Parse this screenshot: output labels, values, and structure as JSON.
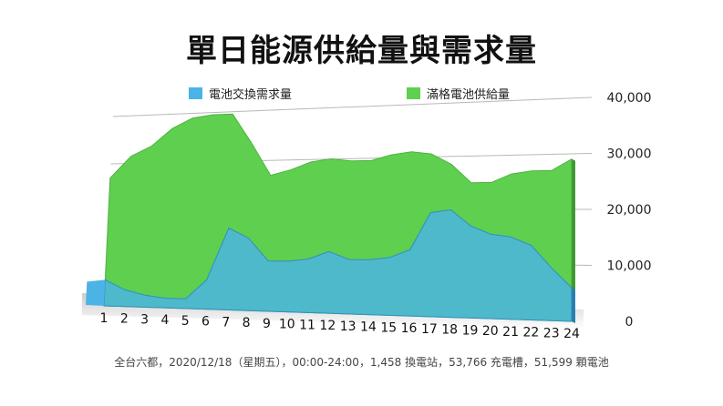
{
  "chart_data": {
    "type": "area",
    "title": "單日能源供給量與需求量",
    "categories": [
      "1",
      "2",
      "3",
      "4",
      "5",
      "6",
      "7",
      "8",
      "9",
      "10",
      "11",
      "12",
      "13",
      "14",
      "15",
      "16",
      "17",
      "18",
      "19",
      "20",
      "21",
      "22",
      "23",
      "24"
    ],
    "series": [
      {
        "name": "電池交換需求量",
        "color": "#4bb3e6",
        "values": [
          5500,
          3500,
          2500,
          2000,
          2000,
          6000,
          16500,
          14500,
          10000,
          10000,
          10500,
          12000,
          10500,
          10500,
          11000,
          12500,
          19500,
          20000,
          17000,
          15500,
          15000,
          13500,
          9500,
          6000
        ]
      },
      {
        "name": "滿格電池供給量",
        "color": "#5fcf4f",
        "values": [
          27000,
          31500,
          33500,
          37000,
          39000,
          39500,
          39500,
          33500,
          27000,
          28000,
          29500,
          30000,
          29500,
          29500,
          30500,
          31000,
          30500,
          28500,
          25000,
          25000,
          26500,
          27000,
          27000,
          29000
        ]
      }
    ],
    "yticks": [
      "0",
      "10,000",
      "20,000",
      "30,000",
      "40,000"
    ],
    "ylim": [
      0,
      40000
    ]
  },
  "footer": "全台六都，2020/12/18（星期五），00:00-24:00，1,458 換電站，53,766 充電槽，51,599 顆電池"
}
